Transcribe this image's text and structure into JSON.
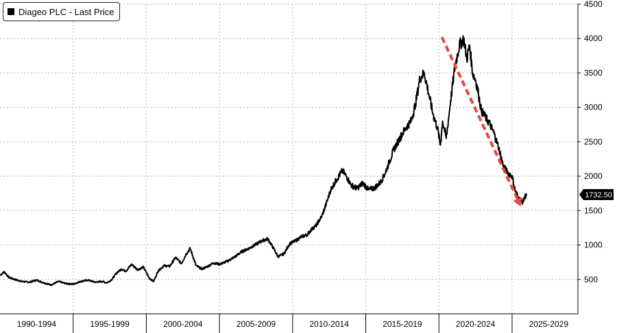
{
  "chart_data": {
    "type": "line",
    "title": "",
    "xlabel": "",
    "ylabel": "",
    "x_range": [
      1990,
      2029.5
    ],
    "ylim": [
      0,
      4500
    ],
    "grid": true,
    "legend_position": "top-left",
    "y_ticks": [
      500,
      1000,
      1500,
      2000,
      2500,
      3000,
      3500,
      4000,
      4500
    ],
    "x_tick_labels": [
      "1990-1994",
      "1995-1999",
      "2000-2004",
      "2005-2009",
      "2010-2014",
      "2015-2019",
      "2020-2024",
      "2025-2029"
    ],
    "series": [
      {
        "name": "Diageo PLC - Last Price",
        "color": "#000000",
        "x": [
          1990.0,
          1990.3,
          1990.6,
          1991.0,
          1991.5,
          1992.0,
          1992.5,
          1993.0,
          1993.5,
          1994.0,
          1994.5,
          1995.0,
          1995.5,
          1996.0,
          1996.5,
          1997.0,
          1997.3,
          1997.6,
          1998.0,
          1998.3,
          1998.6,
          1999.0,
          1999.4,
          1999.8,
          2000.2,
          2000.5,
          2000.8,
          2001.2,
          2001.6,
          2002.0,
          2002.4,
          2002.7,
          2003.0,
          2003.4,
          2003.8,
          2004.2,
          2004.6,
          2005.0,
          2005.5,
          2006.0,
          2006.5,
          2007.0,
          2007.5,
          2007.9,
          2008.3,
          2008.7,
          2009.0,
          2009.4,
          2009.8,
          2010.2,
          2010.6,
          2011.0,
          2011.3,
          2011.6,
          2012.0,
          2012.3,
          2012.6,
          2013.0,
          2013.4,
          2013.7,
          2014.0,
          2014.4,
          2014.8,
          2015.2,
          2015.6,
          2016.0,
          2016.3,
          2016.6,
          2016.9,
          2017.2,
          2017.5,
          2017.8,
          2018.1,
          2018.4,
          2018.7,
          2019.0,
          2019.3,
          2019.6,
          2019.9,
          2020.1,
          2020.25,
          2020.5,
          2020.8,
          2021.1,
          2021.4,
          2021.7,
          2021.9,
          2022.1,
          2022.3,
          2022.5,
          2022.7,
          2022.9,
          2023.2,
          2023.5,
          2023.8,
          2024.1,
          2024.4,
          2024.7,
          2025.0,
          2025.2,
          2025.4,
          2025.55,
          2025.75,
          2025.85,
          2026.0
        ],
        "y": [
          560,
          610,
          530,
          500,
          470,
          460,
          490,
          450,
          420,
          470,
          440,
          430,
          470,
          490,
          460,
          470,
          450,
          490,
          600,
          650,
          620,
          720,
          640,
          680,
          520,
          470,
          620,
          700,
          690,
          820,
          730,
          860,
          950,
          700,
          650,
          690,
          740,
          720,
          760,
          820,
          900,
          950,
          1010,
          1060,
          1090,
          950,
          830,
          870,
          1020,
          1060,
          1120,
          1150,
          1230,
          1280,
          1420,
          1600,
          1800,
          1950,
          2080,
          1990,
          1870,
          1820,
          1900,
          1800,
          1830,
          1910,
          2030,
          2200,
          2380,
          2500,
          2620,
          2720,
          2800,
          3050,
          3420,
          3500,
          3200,
          2900,
          2700,
          2450,
          2800,
          2550,
          3100,
          3600,
          3900,
          4000,
          3700,
          3900,
          3500,
          3400,
          3200,
          2950,
          2850,
          2750,
          2600,
          2400,
          2150,
          2050,
          2000,
          1800,
          1700,
          1650,
          1620,
          1700,
          1732.5
        ]
      }
    ],
    "last_value_label": "1732.50",
    "annotation": {
      "type": "dashed-arrow",
      "color": "#e8483f",
      "from": [
        2020.2,
        4020
      ],
      "to": [
        2025.6,
        1560
      ]
    }
  }
}
